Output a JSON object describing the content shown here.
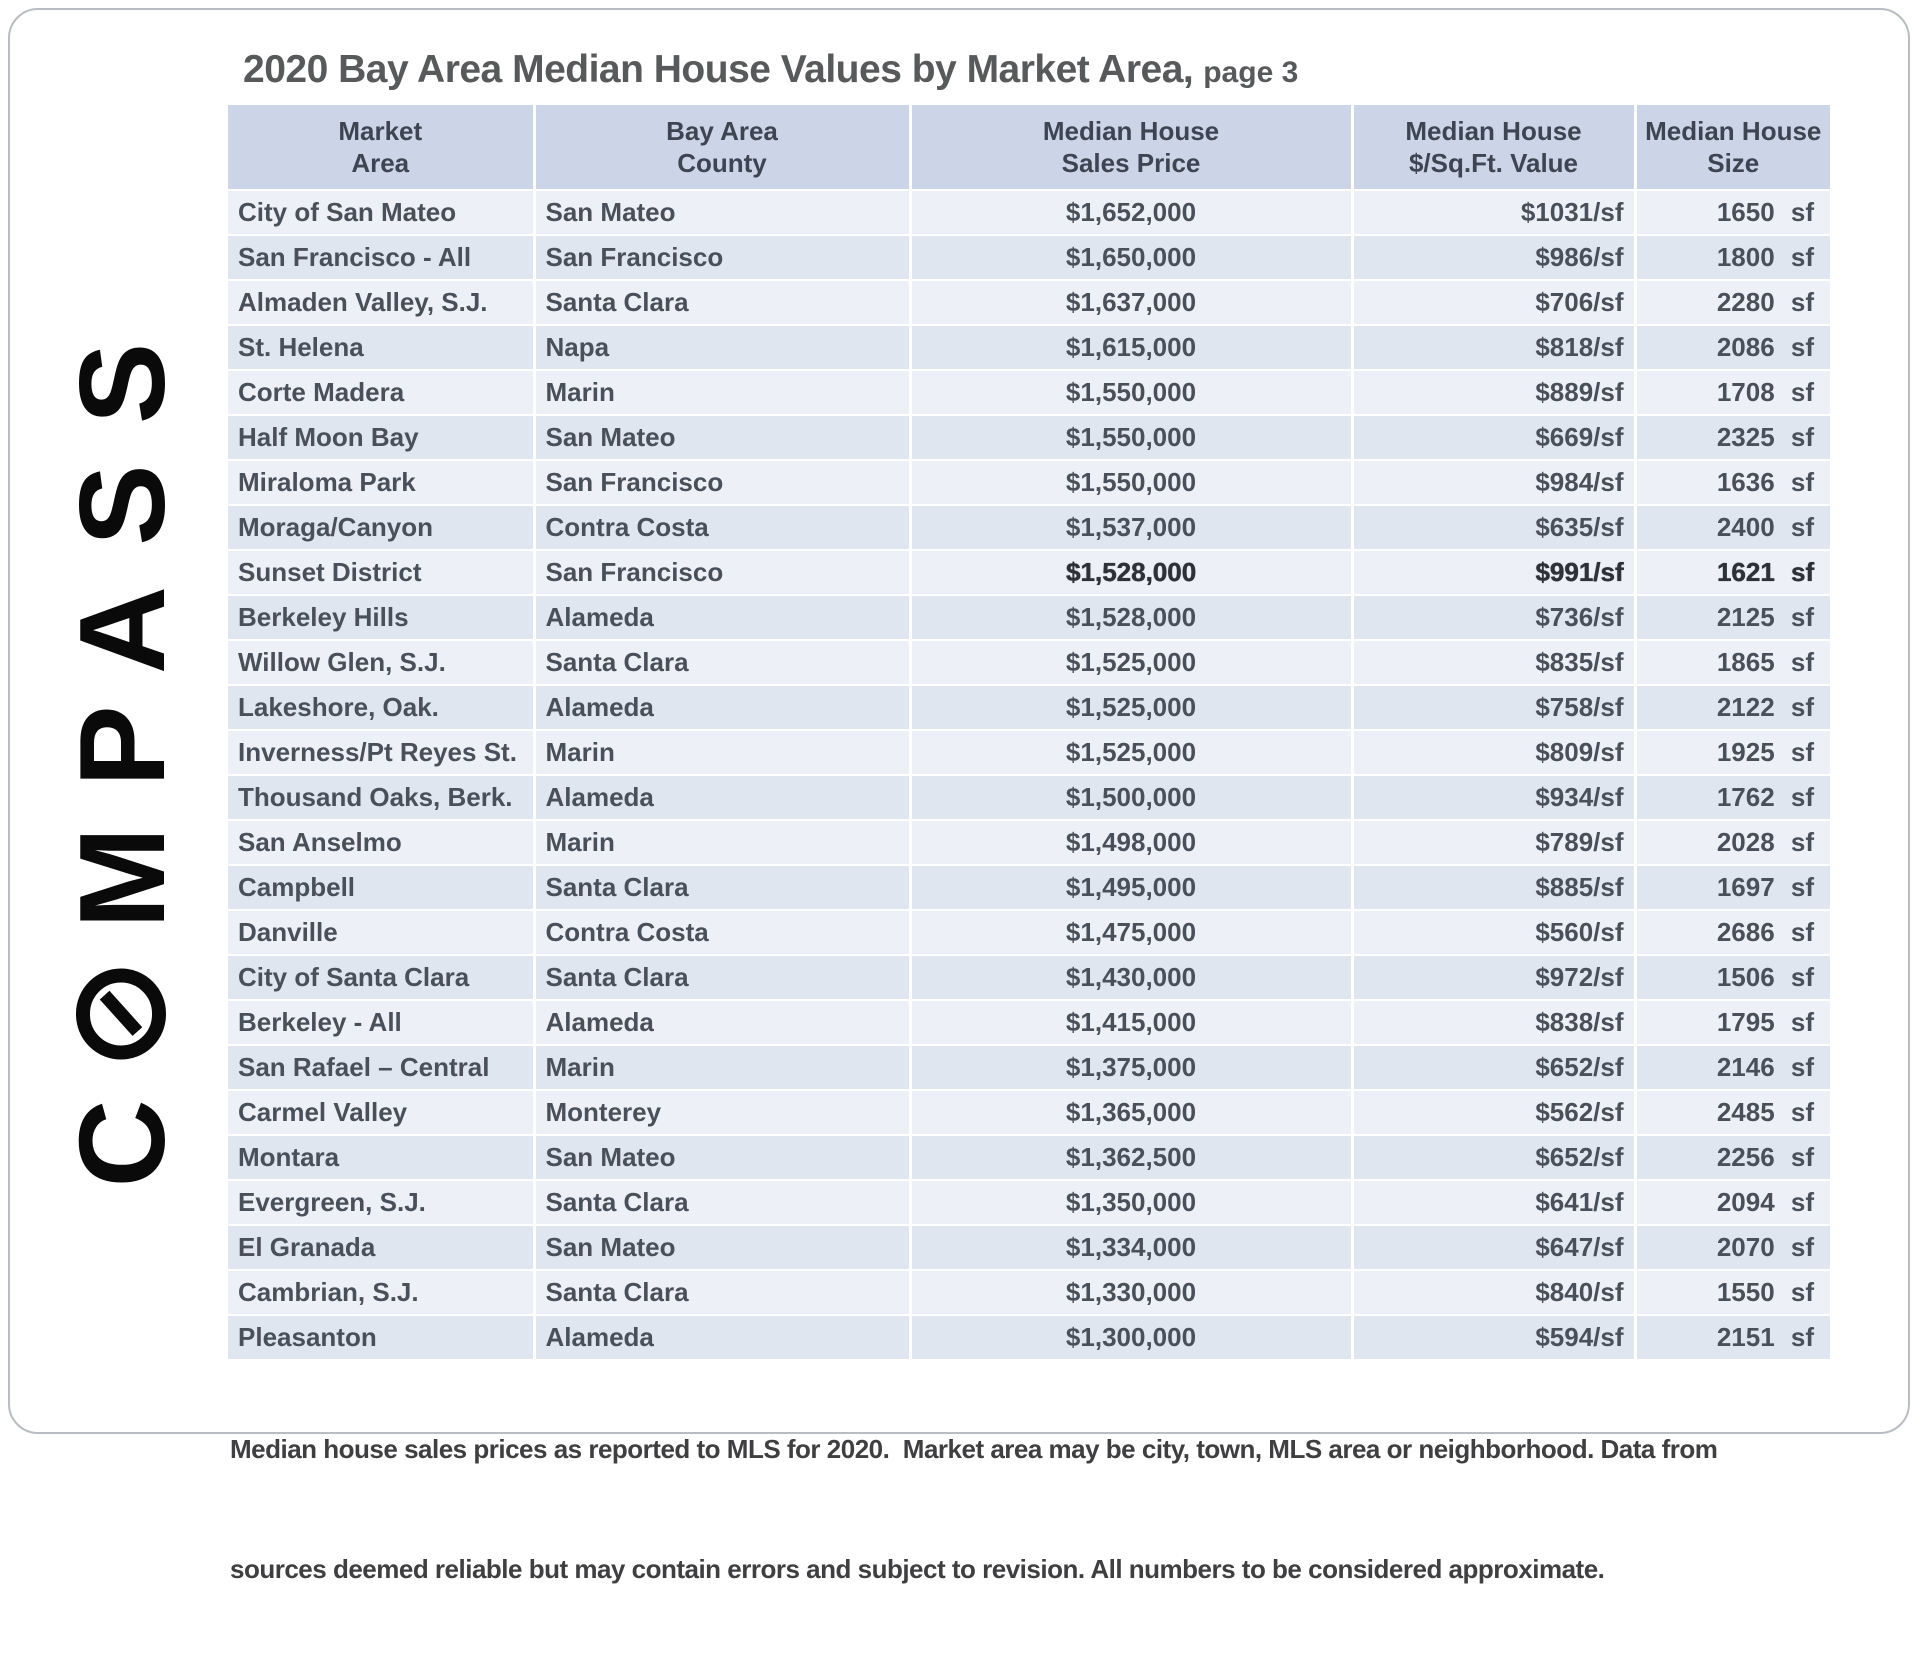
{
  "title": {
    "main": "2020 Bay Area Median House Values by Market Area,",
    "page": "page 3"
  },
  "logo": {
    "name": "COMPASS",
    "pre_o": "C",
    "post_o": "MPASS",
    "color": "#0a0a0a"
  },
  "table": {
    "columns": [
      {
        "line1": "Market",
        "line2": "Area"
      },
      {
        "line1": "Bay Area",
        "line2": "County"
      },
      {
        "line1": "Median House",
        "line2": "Sales Price"
      },
      {
        "line1": "Median House",
        "line2": "$/Sq.Ft. Value"
      },
      {
        "line1": "Median House",
        "line2": "Size"
      }
    ],
    "rows": [
      {
        "market_area": "City of San Mateo",
        "county": "San Mateo",
        "sales_price": "$1,652,000",
        "price_per_sqft": "$1031/sf",
        "size": "1650 sf",
        "highlight": false
      },
      {
        "market_area": "San Francisco - All",
        "county": "San Francisco",
        "sales_price": "$1,650,000",
        "price_per_sqft": "$986/sf",
        "size": "1800 sf",
        "highlight": false
      },
      {
        "market_area": "Almaden Valley, S.J.",
        "county": "Santa Clara",
        "sales_price": "$1,637,000",
        "price_per_sqft": "$706/sf",
        "size": "2280 sf",
        "highlight": false
      },
      {
        "market_area": "St. Helena",
        "county": "Napa",
        "sales_price": "$1,615,000",
        "price_per_sqft": "$818/sf",
        "size": "2086 sf",
        "highlight": false
      },
      {
        "market_area": "Corte Madera",
        "county": "Marin",
        "sales_price": "$1,550,000",
        "price_per_sqft": "$889/sf",
        "size": "1708 sf",
        "highlight": false
      },
      {
        "market_area": "Half Moon Bay",
        "county": "San Mateo",
        "sales_price": "$1,550,000",
        "price_per_sqft": "$669/sf",
        "size": "2325 sf",
        "highlight": false
      },
      {
        "market_area": "Miraloma Park",
        "county": "San Francisco",
        "sales_price": "$1,550,000",
        "price_per_sqft": "$984/sf",
        "size": "1636 sf",
        "highlight": false
      },
      {
        "market_area": "Moraga/Canyon",
        "county": "Contra Costa",
        "sales_price": "$1,537,000",
        "price_per_sqft": "$635/sf",
        "size": "2400 sf",
        "highlight": false
      },
      {
        "market_area": "Sunset District",
        "county": "San Francisco",
        "sales_price": "$1,528,000",
        "price_per_sqft": "$991/sf",
        "size": "1621 sf",
        "highlight": true
      },
      {
        "market_area": "Berkeley Hills",
        "county": "Alameda",
        "sales_price": "$1,528,000",
        "price_per_sqft": "$736/sf",
        "size": "2125 sf",
        "highlight": false
      },
      {
        "market_area": "Willow Glen, S.J.",
        "county": "Santa Clara",
        "sales_price": "$1,525,000",
        "price_per_sqft": "$835/sf",
        "size": "1865 sf",
        "highlight": false
      },
      {
        "market_area": "Lakeshore, Oak.",
        "county": "Alameda",
        "sales_price": "$1,525,000",
        "price_per_sqft": "$758/sf",
        "size": "2122 sf",
        "highlight": false
      },
      {
        "market_area": "Inverness/Pt Reyes St.",
        "county": "Marin",
        "sales_price": "$1,525,000",
        "price_per_sqft": "$809/sf",
        "size": "1925 sf",
        "highlight": false
      },
      {
        "market_area": "Thousand Oaks, Berk.",
        "county": "Alameda",
        "sales_price": "$1,500,000",
        "price_per_sqft": "$934/sf",
        "size": "1762 sf",
        "highlight": false
      },
      {
        "market_area": "San Anselmo",
        "county": "Marin",
        "sales_price": "$1,498,000",
        "price_per_sqft": "$789/sf",
        "size": "2028 sf",
        "highlight": false
      },
      {
        "market_area": "Campbell",
        "county": "Santa Clara",
        "sales_price": "$1,495,000",
        "price_per_sqft": "$885/sf",
        "size": "1697 sf",
        "highlight": false
      },
      {
        "market_area": "Danville",
        "county": "Contra Costa",
        "sales_price": "$1,475,000",
        "price_per_sqft": "$560/sf",
        "size": "2686 sf",
        "highlight": false
      },
      {
        "market_area": "City of Santa Clara",
        "county": "Santa Clara",
        "sales_price": "$1,430,000",
        "price_per_sqft": "$972/sf",
        "size": "1506 sf",
        "highlight": false
      },
      {
        "market_area": "Berkeley - All",
        "county": "Alameda",
        "sales_price": "$1,415,000",
        "price_per_sqft": "$838/sf",
        "size": "1795 sf",
        "highlight": false
      },
      {
        "market_area": "San Rafael – Central",
        "county": "Marin",
        "sales_price": "$1,375,000",
        "price_per_sqft": "$652/sf",
        "size": "2146 sf",
        "highlight": false
      },
      {
        "market_area": "Carmel Valley",
        "county": "Monterey",
        "sales_price": "$1,365,000",
        "price_per_sqft": "$562/sf",
        "size": "2485 sf",
        "highlight": false
      },
      {
        "market_area": "Montara",
        "county": "San Mateo",
        "sales_price": "$1,362,500",
        "price_per_sqft": "$652/sf",
        "size": "2256 sf",
        "highlight": false
      },
      {
        "market_area": "Evergreen, S.J.",
        "county": "Santa Clara",
        "sales_price": "$1,350,000",
        "price_per_sqft": "$641/sf",
        "size": "2094 sf",
        "highlight": false
      },
      {
        "market_area": "El Granada",
        "county": "San Mateo",
        "sales_price": "$1,334,000",
        "price_per_sqft": "$647/sf",
        "size": "2070 sf",
        "highlight": false
      },
      {
        "market_area": "Cambrian, S.J.",
        "county": "Santa Clara",
        "sales_price": "$1,330,000",
        "price_per_sqft": "$840/sf",
        "size": "1550 sf",
        "highlight": false
      },
      {
        "market_area": "Pleasanton",
        "county": "Alameda",
        "sales_price": "$1,300,000",
        "price_per_sqft": "$594/sf",
        "size": "2151 sf",
        "highlight": false
      }
    ]
  },
  "footer": {
    "line1": "Median house sales prices as reported to MLS for 2020.  Market area may be city, town, MLS area or neighborhood. Data from",
    "line2": "sources deemed reliable but may contain errors and subject to revision. All numbers to be considered approximate."
  },
  "colors": {
    "header_bg": "#cbd5e7",
    "row_odd": "#edf0f7",
    "row_even": "#e0e6f0",
    "cell_text": "#4a505a",
    "title_text": "#58595b",
    "card_border": "#b9bcc1"
  }
}
